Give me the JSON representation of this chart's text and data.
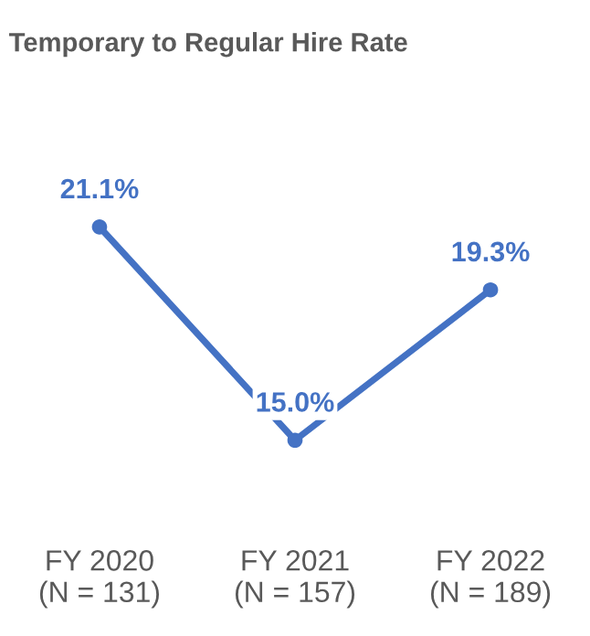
{
  "chart_data": {
    "type": "line",
    "title": "Temporary to Regular Hire Rate",
    "categories": [
      "FY 2020\n(N = 131)",
      "FY 2021\n(N = 157)",
      "FY 2022\n(N = 189)"
    ],
    "series": [
      {
        "color": "#4472c4",
        "values": [
          21.1,
          15.0,
          19.3
        ],
        "value_labels": [
          "21.1%",
          "15.0%",
          "19.3%"
        ]
      }
    ],
    "marker": "circle",
    "grid": false
  }
}
